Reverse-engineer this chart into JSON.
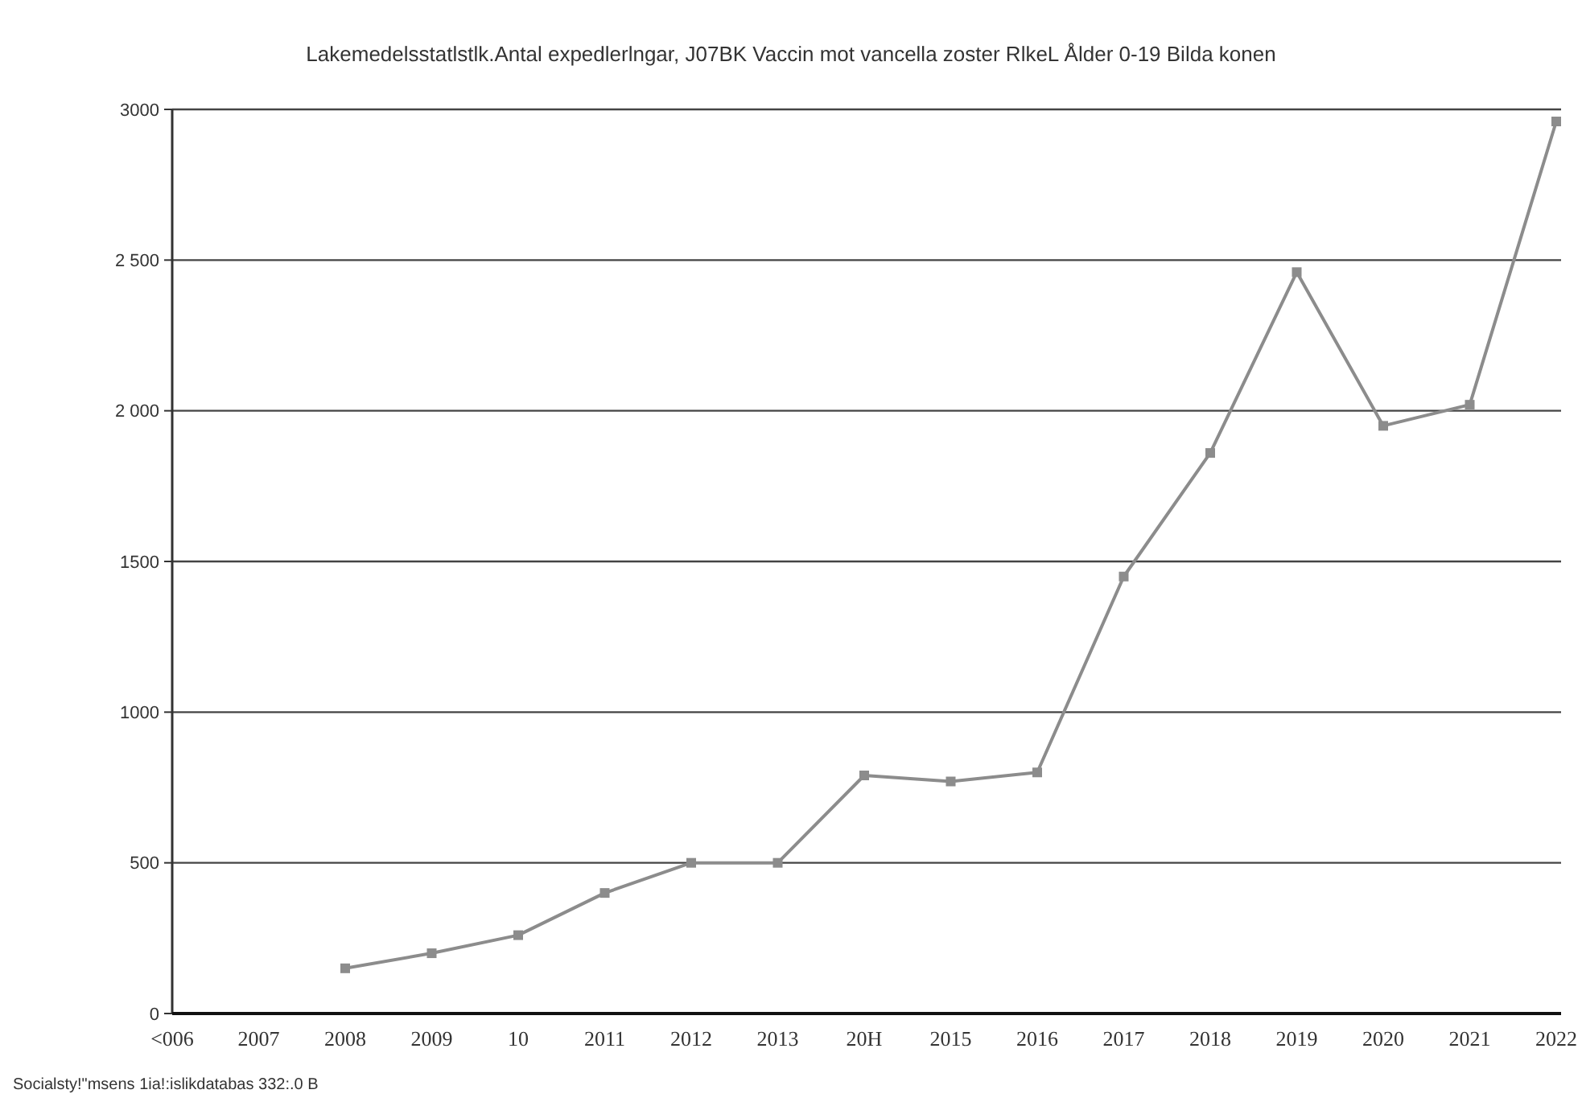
{
  "chart_data": {
    "type": "line",
    "title": "Lakemedelsstatlstlk.Antal expedlerlngar, J07BK Vaccin mot vancella zoster RlkeL Ålder 0-19 Bilda konen",
    "categories": [
      "<006",
      "2007",
      "2008",
      "2009",
      "10",
      "2011",
      "2012",
      "2013",
      "20H",
      "2015",
      "2016",
      "2017",
      "2018",
      "2019",
      "2020",
      "2021",
      "2022"
    ],
    "series": [
      {
        "color": "#8c8c8c",
        "values": [
          null,
          null,
          150,
          200,
          260,
          400,
          500,
          500,
          790,
          770,
          800,
          1450,
          1860,
          2460,
          1950,
          2020,
          2960
        ]
      }
    ],
    "ylim": [
      0,
      3000
    ],
    "yticks": [
      0,
      500,
      1000,
      1500,
      {
        "value": 2000,
        "label": "2 000"
      },
      {
        "value": 2500,
        "label": "2 500"
      },
      3000
    ],
    "grid": "y",
    "marker": "square",
    "line_style": "solid",
    "annotations": [
      "Socialsty!\"msens 1ia!:islikdatabas 332:.0 B"
    ]
  }
}
